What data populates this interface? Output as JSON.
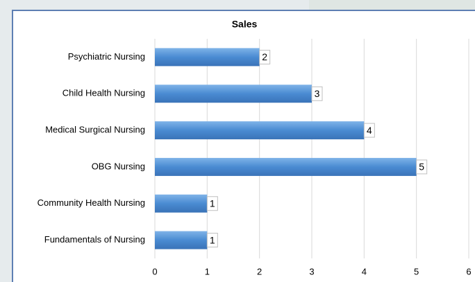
{
  "chart_data": {
    "type": "bar",
    "orientation": "horizontal",
    "title": "Sales",
    "categories": [
      "Psychiatric Nursing",
      "Child Health Nursing",
      "Medical Surgical Nursing",
      "OBG Nursing",
      "Community Health Nursing",
      "Fundamentals of Nursing"
    ],
    "values": [
      2,
      3,
      4,
      5,
      1,
      1
    ],
    "color": "#4a8bd2",
    "xlim": [
      0,
      6
    ],
    "xticks": [
      0,
      1,
      2,
      3,
      4,
      5,
      6
    ],
    "grid": true,
    "data_labels": true
  }
}
